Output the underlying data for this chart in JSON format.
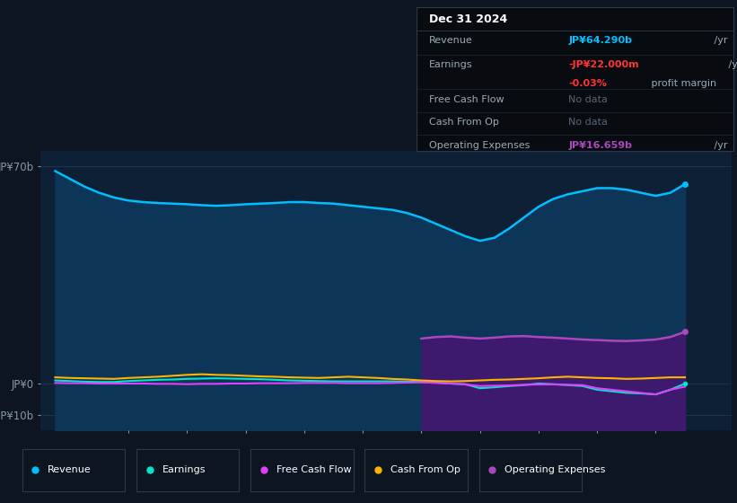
{
  "bg_color": "#0d1520",
  "plot_bg_color": "#0a1929",
  "plot_bg_color2": "#0d2035",
  "title": "Dec 31 2024",
  "years": [
    2013.75,
    2014.0,
    2014.25,
    2014.5,
    2014.75,
    2015.0,
    2015.25,
    2015.5,
    2015.75,
    2016.0,
    2016.25,
    2016.5,
    2016.75,
    2017.0,
    2017.25,
    2017.5,
    2017.75,
    2018.0,
    2018.25,
    2018.5,
    2018.75,
    2019.0,
    2019.25,
    2019.5,
    2019.75,
    2020.0,
    2020.25,
    2020.5,
    2020.75,
    2021.0,
    2021.25,
    2021.5,
    2021.75,
    2022.0,
    2022.25,
    2022.5,
    2022.75,
    2023.0,
    2023.25,
    2023.5,
    2023.75,
    2024.0,
    2024.25,
    2024.5
  ],
  "revenue": [
    68.5,
    66.0,
    63.5,
    61.5,
    60.0,
    59.0,
    58.5,
    58.2,
    58.0,
    57.8,
    57.5,
    57.3,
    57.5,
    57.8,
    58.0,
    58.2,
    58.5,
    58.5,
    58.2,
    58.0,
    57.5,
    57.0,
    56.5,
    56.0,
    55.0,
    53.5,
    51.5,
    49.5,
    47.5,
    46.0,
    47.0,
    50.0,
    53.5,
    57.0,
    59.5,
    61.0,
    62.0,
    63.0,
    63.0,
    62.5,
    61.5,
    60.5,
    61.5,
    64.3
  ],
  "earnings": [
    1.0,
    0.8,
    0.6,
    0.5,
    0.5,
    0.8,
    1.0,
    1.2,
    1.3,
    1.5,
    1.6,
    1.7,
    1.6,
    1.5,
    1.4,
    1.2,
    1.0,
    0.9,
    0.8,
    0.7,
    0.7,
    0.7,
    0.7,
    0.7,
    0.6,
    0.5,
    0.3,
    0.0,
    -0.2,
    -1.5,
    -1.2,
    -0.8,
    -0.5,
    0.0,
    -0.2,
    -0.5,
    -0.8,
    -2.0,
    -2.5,
    -3.0,
    -3.2,
    -3.5,
    -2.0,
    -0.02
  ],
  "free_cash_flow": [
    0.2,
    0.1,
    0.1,
    0.0,
    0.0,
    0.0,
    0.0,
    -0.1,
    -0.1,
    -0.2,
    -0.1,
    -0.1,
    0.0,
    0.0,
    0.1,
    0.1,
    0.1,
    0.2,
    0.2,
    0.2,
    0.1,
    0.1,
    0.1,
    0.2,
    0.3,
    0.4,
    0.2,
    0.0,
    -0.3,
    -0.8,
    -0.7,
    -0.6,
    -0.4,
    -0.3,
    -0.3,
    -0.4,
    -0.5,
    -1.5,
    -2.0,
    -2.5,
    -3.0,
    -3.5,
    -2.0,
    -1.0
  ],
  "cash_from_op": [
    2.0,
    1.8,
    1.7,
    1.6,
    1.5,
    1.8,
    2.0,
    2.2,
    2.5,
    2.8,
    3.0,
    2.8,
    2.7,
    2.5,
    2.3,
    2.2,
    2.0,
    1.9,
    1.8,
    2.0,
    2.2,
    2.0,
    1.8,
    1.5,
    1.3,
    1.0,
    0.8,
    0.7,
    0.8,
    1.0,
    1.2,
    1.3,
    1.5,
    1.7,
    2.0,
    2.2,
    2.0,
    1.8,
    1.7,
    1.5,
    1.6,
    1.8,
    2.0,
    2.0
  ],
  "op_expenses_x": [
    2020.0,
    2020.25,
    2020.5,
    2020.75,
    2021.0,
    2021.25,
    2021.5,
    2021.75,
    2022.0,
    2022.25,
    2022.5,
    2022.75,
    2023.0,
    2023.25,
    2023.5,
    2023.75,
    2024.0,
    2024.25,
    2024.5
  ],
  "op_expenses": [
    14.5,
    15.0,
    15.2,
    14.8,
    14.5,
    14.8,
    15.2,
    15.3,
    15.0,
    14.8,
    14.5,
    14.2,
    14.0,
    13.8,
    13.7,
    13.9,
    14.2,
    15.0,
    16.659
  ],
  "revenue_color": "#00bfff",
  "earnings_color": "#00e5cc",
  "free_cash_flow_color": "#e040fb",
  "cash_from_op_color": "#ffb300",
  "op_expenses_color": "#ab47bc",
  "op_expenses_fill_color": "#3d1a6e",
  "revenue_fill_color": "#0d3558",
  "ylim_min": -15,
  "ylim_max": 75,
  "xlim_min": 2013.5,
  "xlim_max": 2025.3,
  "ytick_positions": [
    -10,
    0,
    70
  ],
  "ytick_labels": [
    "-JP¥10b",
    "JP¥0",
    "JP¥70b"
  ],
  "xticks": [
    2015,
    2016,
    2017,
    2018,
    2019,
    2020,
    2021,
    2022,
    2023,
    2024
  ],
  "info_box": {
    "title": "Dec 31 2024",
    "revenue_label": "Revenue",
    "revenue_value": "JP¥64.290b",
    "revenue_suffix": " /yr",
    "earnings_label": "Earnings",
    "earnings_value": "-JP¥22.000m",
    "earnings_suffix": " /yr",
    "profit_margin_value": "-0.03%",
    "profit_margin_suffix": " profit margin",
    "fcf_label": "Free Cash Flow",
    "fcf_value": "No data",
    "cashop_label": "Cash From Op",
    "cashop_value": "No data",
    "opex_label": "Operating Expenses",
    "opex_value": "JP¥16.659b",
    "opex_suffix": " /yr"
  },
  "legend_items": [
    {
      "label": "Revenue",
      "color": "#00bfff"
    },
    {
      "label": "Earnings",
      "color": "#00e5cc"
    },
    {
      "label": "Free Cash Flow",
      "color": "#e040fb"
    },
    {
      "label": "Cash From Op",
      "color": "#ffb300"
    },
    {
      "label": "Operating Expenses",
      "color": "#ab47bc"
    }
  ]
}
